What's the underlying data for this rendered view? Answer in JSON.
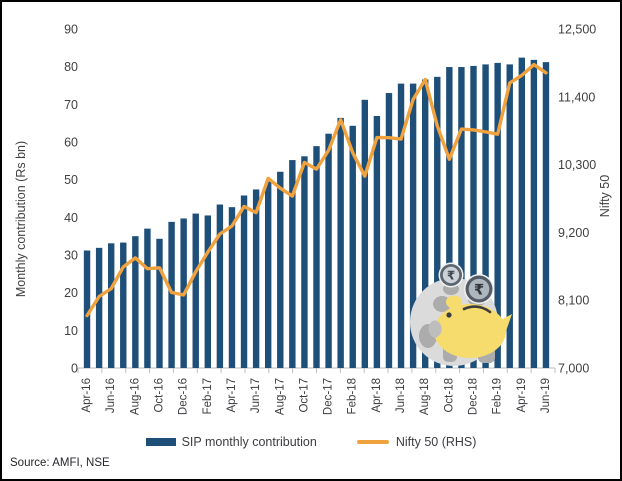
{
  "chart_data": {
    "type": "combo-bar-line",
    "categories": [
      "Apr-16",
      "May-16",
      "Jun-16",
      "Jul-16",
      "Aug-16",
      "Sep-16",
      "Oct-16",
      "Nov-16",
      "Dec-16",
      "Jan-17",
      "Feb-17",
      "Mar-17",
      "Apr-17",
      "May-17",
      "Jun-17",
      "Jul-17",
      "Aug-17",
      "Sep-17",
      "Oct-17",
      "Nov-17",
      "Dec-17",
      "Jan-18",
      "Feb-18",
      "Mar-18",
      "Apr-18",
      "May-18",
      "Jun-18",
      "Jul-18",
      "Aug-18",
      "Sep-18",
      "Oct-18",
      "Nov-18",
      "Dec-18",
      "Jan-19",
      "Feb-19",
      "Mar-19",
      "Apr-19",
      "May-19",
      "Jun-19"
    ],
    "x_label_every": 2,
    "series": [
      {
        "name": "SIP monthly contribution",
        "type": "bar",
        "axis": "left",
        "color": "#1E4F78",
        "values": [
          31.2,
          31.9,
          33.1,
          33.3,
          35.0,
          37.0,
          34.3,
          38.8,
          39.7,
          41.0,
          40.5,
          43.4,
          42.7,
          45.8,
          47.4,
          49.5,
          52.1,
          55.2,
          56.2,
          58.9,
          62.2,
          66.4,
          64.3,
          71.2,
          66.9,
          73.0,
          75.5,
          75.5,
          76.6,
          77.3,
          79.9,
          79.9,
          80.2,
          80.6,
          81.0,
          80.6,
          82.4,
          81.8,
          81.2
        ]
      },
      {
        "name": "Nifty 50 (RHS)",
        "type": "line",
        "axis": "right",
        "color": "#F0A23E",
        "values": [
          7850,
          8160,
          8288,
          8639,
          8786,
          8611,
          8626,
          8225,
          8186,
          8561,
          8880,
          9174,
          9304,
          9621,
          9521,
          10077,
          9918,
          9789,
          10335,
          10227,
          10531,
          11028,
          10493,
          10114,
          10739,
          10736,
          10714,
          11357,
          11681,
          10930,
          10386,
          10877,
          10863,
          10831,
          10793,
          11624,
          11748,
          11923,
          11789
        ]
      }
    ],
    "left_axis": {
      "label": "Monthly contribution (Rs bn)",
      "min": 0,
      "max": 90,
      "step": 10,
      "tick_labels": [
        "0",
        "10",
        "20",
        "30",
        "40",
        "50",
        "60",
        "70",
        "80",
        "90"
      ]
    },
    "right_axis": {
      "label": "Nifty 50",
      "min": 7000,
      "max": 12500,
      "step": 1100,
      "tick_labels": [
        "7,000",
        "8,100",
        "9,200",
        "10,300",
        "11,400",
        "12,500"
      ]
    },
    "grid": false,
    "legend_position": "bottom",
    "title": ""
  },
  "watermark": {
    "icon": "piggy-bank-rupee-coins",
    "coin_symbol": "₹"
  },
  "source_note": "Source: AMFI, NSE",
  "colors": {
    "bar": "#1E4F78",
    "line": "#F0A23E",
    "axis_text": "#404040",
    "axis_line": "#BFBFBF",
    "border": "#000000",
    "background": "#FFFFFF"
  }
}
